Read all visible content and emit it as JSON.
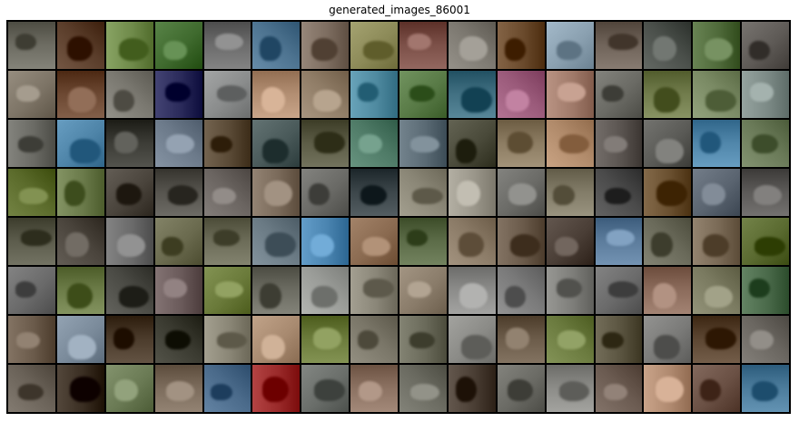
{
  "figure": {
    "title": "generated_images_86001"
  },
  "grid": {
    "rows": 8,
    "cols": 16,
    "tiles": [
      [
        "#6b6a60",
        "#5a3d2a",
        "#6f8a4a",
        "#3f6a2e",
        "#6a6a6a",
        "#4d7390",
        "#7d6d60",
        "#8c8a58",
        "#7a4e46",
        "#7c7870",
        "#6a4a2c",
        "#8aa0b0",
        "#6e6258",
        "#4a4f4a",
        "#4f6a3a",
        "#5e5a56"
      ],
      [
        "#7d7466",
        "#6a4630",
        "#7a7870",
        "#2a2a5a",
        "#8a8c8c",
        "#b08c70",
        "#8f7c66",
        "#4f8aa0",
        "#587a46",
        "#3f6e80",
        "#9a5a7a",
        "#a07a6a",
        "#6a6a64",
        "#6f7a4a",
        "#7a8a64",
        "#7c8a86"
      ],
      [
        "#6a6a64",
        "#4e84a8",
        "#3a3a34",
        "#6c7a8a",
        "#5a4a36",
        "#4a5a5a",
        "#5a5a44",
        "#4e7a66",
        "#5a6a74",
        "#4a4a3a",
        "#8a7a60",
        "#b08a6a",
        "#5a5450",
        "#5a5a56",
        "#4e84a8",
        "#6a7a58"
      ],
      [
        "#5a6a2a",
        "#6a7a4a",
        "#4a443c",
        "#54524c",
        "#6a6460",
        "#7a6a5a",
        "#6a6a66",
        "#3a4448",
        "#8a8676",
        "#9a968a",
        "#6a6a66",
        "#807a66",
        "#4a4a4a",
        "#6a5030",
        "#5a6470",
        "#5a5856"
      ],
      [
        "#5a5a4a",
        "#4a443c",
        "#6a6a6a",
        "#6a6a4e",
        "#6a6a56",
        "#6a7a84",
        "#4a84b0",
        "#8a6a50",
        "#5a6a46",
        "#8a7a66",
        "#6a5a4a",
        "#4a3e36",
        "#5a7a9a",
        "#6a6a5a",
        "#7a6a56",
        "#5a6a30"
      ],
      [
        "#6a6a6a",
        "#6a7a46",
        "#4a4a44",
        "#6a5a5a",
        "#6a7a3a",
        "#6a6a60",
        "#9a9c98",
        "#8a8678",
        "#8a7c6a",
        "#8a8a88",
        "#7a7a7a",
        "#7e7e7a",
        "#6a6a6a",
        "#8a6a5a",
        "#7a7a60",
        "#4a6a4a"
      ],
      [
        "#6a5a4a",
        "#7a8a9a",
        "#4a3a2a",
        "#3a3a30",
        "#8a8676",
        "#a88a70",
        "#6a7a3a",
        "#7a7668",
        "#6a6a5a",
        "#8a8a86",
        "#6a5a48",
        "#6a7a3e",
        "#5a5440",
        "#7a7a78",
        "#5a4430",
        "#6a6660"
      ],
      [
        "#6a6258",
        "#3a2e22",
        "#6a7a54",
        "#7a6a5a",
        "#4a6a8a",
        "#9a2a2a",
        "#6a6e6a",
        "#8a7060",
        "#6a6a60",
        "#4a3e34",
        "#6a6a64",
        "#8a8a86",
        "#6a5a50",
        "#b08a70",
        "#6a5044",
        "#4a7a9a"
      ]
    ]
  }
}
